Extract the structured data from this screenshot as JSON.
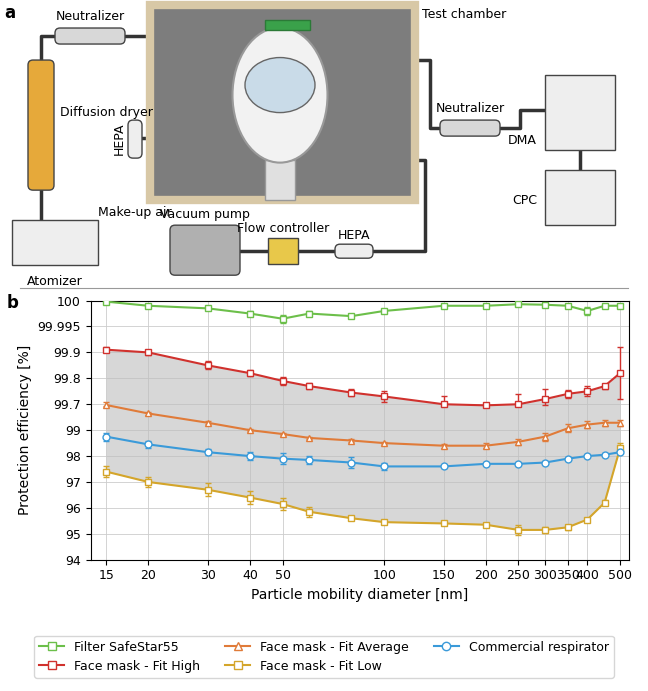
{
  "diagram": {
    "label": "a",
    "nodes": [
      {
        "label": "Neutralizer"
      },
      {
        "label": "Diffusion dryer"
      },
      {
        "label": "Atomizer"
      },
      {
        "label": "Test chamber"
      },
      {
        "label": "HEPA"
      },
      {
        "label": "Make-up air"
      },
      {
        "label": "Vacuum pump"
      },
      {
        "label": "Flow controller"
      },
      {
        "label": "HEPA"
      },
      {
        "label": "Neutralizer"
      },
      {
        "label": "DMA"
      },
      {
        "label": "CPC"
      }
    ]
  },
  "chart_data": {
    "type": "line",
    "panel_label": "b",
    "x_label": "Particle mobility diameter [nm]",
    "y_label": "Protection efficiency [%]",
    "x": [
      15,
      20,
      30,
      40,
      50,
      60,
      80,
      100,
      150,
      200,
      250,
      300,
      350,
      400,
      450,
      500
    ],
    "xlim": [
      13.5,
      530
    ],
    "xticks": [
      15,
      20,
      30,
      40,
      50,
      100,
      150,
      200,
      250,
      300,
      350,
      400,
      500
    ],
    "ylim": [
      94,
      100
    ],
    "yticks": [
      94,
      95,
      96,
      97,
      98,
      99,
      99.7,
      99.8,
      99.9,
      99.995,
      100
    ],
    "log": "x",
    "grid": true,
    "legend": "lower center",
    "series": [
      {
        "name": "Filter SafeStar55",
        "color": "#6cbf4a",
        "marker": "square",
        "values": [
          99.9998,
          99.999,
          99.9985,
          99.9975,
          99.9965,
          99.9975,
          99.997,
          99.998,
          99.999,
          99.999,
          99.9993,
          99.9992,
          99.999,
          99.998,
          99.999,
          99.999
        ],
        "errors": [
          0.0002,
          0.0003,
          0.0003,
          0.0005,
          0.0008,
          0.0004,
          0.0004,
          0.0004,
          0.0003,
          0.0003,
          0.0003,
          0.0003,
          0.0003,
          0.0008,
          0.0003,
          0.0003
        ]
      },
      {
        "name": "Face mask - Fit High",
        "color": "#d0312d",
        "marker": "square",
        "values": [
          99.91,
          99.9,
          99.85,
          99.82,
          99.79,
          99.77,
          99.745,
          99.73,
          99.7,
          99.67,
          99.7,
          99.72,
          99.74,
          99.75,
          99.77,
          99.82
        ],
        "errors": [
          0.01,
          0.01,
          0.015,
          0.012,
          0.015,
          0.012,
          0.012,
          0.02,
          0.03,
          0.02,
          0.04,
          0.04,
          0.015,
          0.02,
          0.01,
          0.1
        ]
      },
      {
        "name": "Face mask - Fit Average",
        "color": "#e07b39",
        "marker": "triangle",
        "values": [
          99.68,
          99.45,
          99.2,
          99.0,
          98.85,
          98.7,
          98.6,
          98.5,
          98.4,
          98.4,
          98.55,
          98.75,
          99.05,
          99.15,
          99.2,
          99.2
        ],
        "errors": [
          0.03,
          0.03,
          0.04,
          0.04,
          0.05,
          0.04,
          0.04,
          0.05,
          0.08,
          0.1,
          0.12,
          0.15,
          0.12,
          0.1,
          0.08,
          0.08
        ]
      },
      {
        "name": "Face mask - Fit Low",
        "color": "#d4a52a",
        "marker": "square",
        "values": [
          97.4,
          97.0,
          96.7,
          96.4,
          96.15,
          95.85,
          95.6,
          95.45,
          95.4,
          95.35,
          95.15,
          95.15,
          95.25,
          95.55,
          96.2,
          98.3
        ],
        "errors": [
          0.2,
          0.2,
          0.25,
          0.25,
          0.25,
          0.2,
          0.05,
          0.05,
          0.05,
          0.05,
          0.2,
          0.1,
          0.1,
          0.05,
          0.1,
          0.2
        ]
      },
      {
        "name": "Commercial respirator",
        "color": "#3a9ad9",
        "marker": "circle",
        "values": [
          98.75,
          98.45,
          98.15,
          98.0,
          97.9,
          97.85,
          97.75,
          97.6,
          97.6,
          97.7,
          97.7,
          97.75,
          97.9,
          98.0,
          98.05,
          98.15
        ],
        "errors": [
          0.15,
          0.12,
          0.12,
          0.15,
          0.2,
          0.15,
          0.2,
          0.15,
          0.05,
          0.05,
          0.05,
          0.05,
          0.05,
          0.05,
          0.05,
          0.05
        ]
      }
    ]
  }
}
